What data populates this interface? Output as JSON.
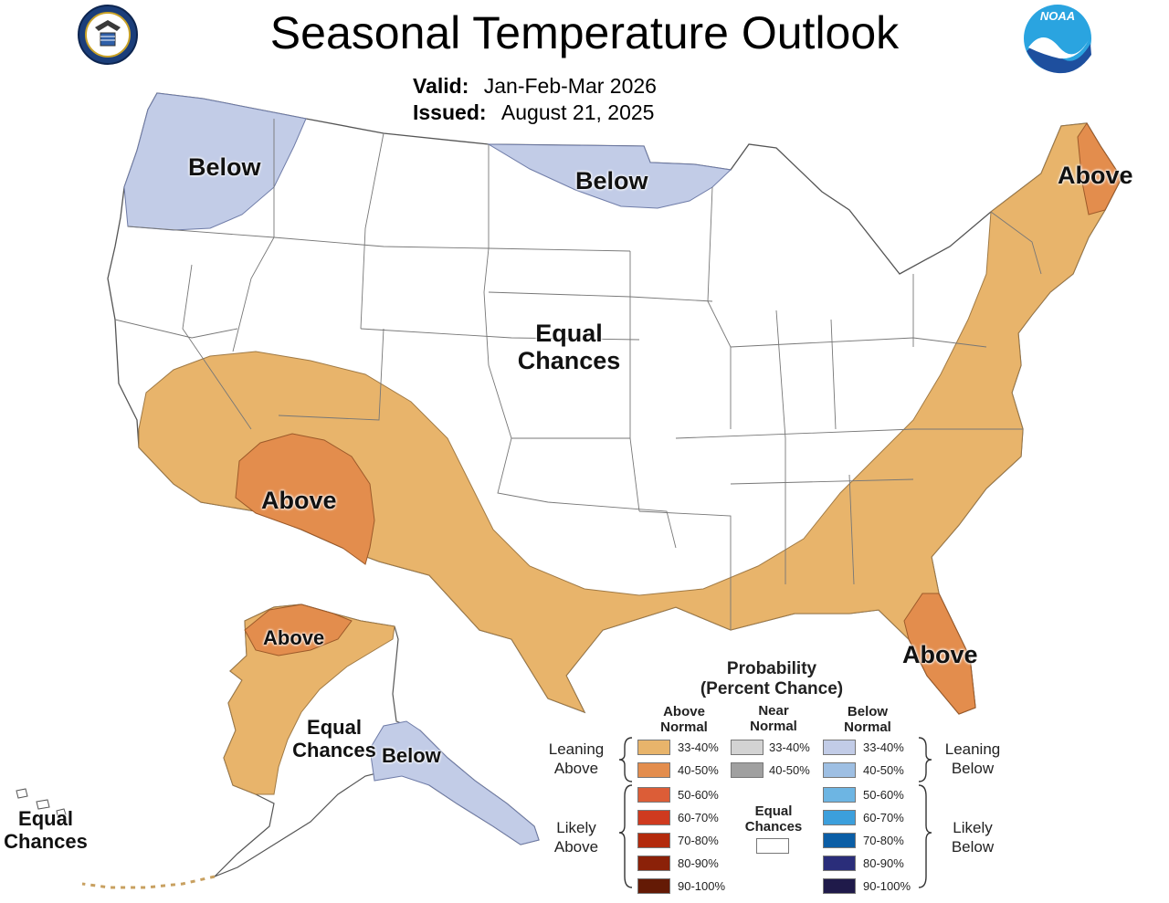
{
  "header": {
    "title": "Seasonal Temperature Outlook",
    "valid_label": "Valid:",
    "valid_value": "Jan-Feb-Mar 2026",
    "issued_label": "Issued:",
    "issued_value": "August 21, 2025"
  },
  "logos": {
    "left": "doc-seal-icon",
    "right": "noaa-logo-icon",
    "noaa_text": "NOAA"
  },
  "colors": {
    "above_33_40": "#e8b46b",
    "above_40_50": "#e38d4d",
    "above_50_60": "#dc5d37",
    "above_60_70": "#cf3a1f",
    "above_70_80": "#b32a0c",
    "above_80_90": "#8b2108",
    "above_90_100": "#641a05",
    "near_33_40": "#d3d3d3",
    "near_40_50": "#a0a0a0",
    "below_33_40": "#c2cce7",
    "below_40_50": "#9ebfe3",
    "below_50_60": "#6db5e3",
    "below_60_70": "#3c9fdc",
    "below_70_80": "#0b5ea6",
    "below_80_90": "#2a2d7a",
    "below_90_100": "#1f1a4a",
    "equal_chances": "#ffffff"
  },
  "map_labels": {
    "pnw": "Below",
    "north_plains": "Below",
    "new_england": "Above",
    "central_line1": "Equal",
    "central_line2": "Chances",
    "southwest": "Above",
    "florida": "Above",
    "alaska_north": "Above",
    "alaska_center_line1": "Equal",
    "alaska_center_line2": "Chances",
    "alaska_se": "Below",
    "hawaii_line1": "Equal",
    "hawaii_line2": "Chances"
  },
  "legend": {
    "title_line1": "Probability",
    "title_line2": "(Percent Chance)",
    "col_above_1": "Above",
    "col_above_2": "Normal",
    "col_near_1": "Near",
    "col_near_2": "Normal",
    "col_below_1": "Below",
    "col_below_2": "Normal",
    "leaning_above_1": "Leaning",
    "leaning_above_2": "Above",
    "likely_above_1": "Likely",
    "likely_above_2": "Above",
    "leaning_below_1": "Leaning",
    "leaning_below_2": "Below",
    "likely_below_1": "Likely",
    "likely_below_2": "Below",
    "equal_1": "Equal",
    "equal_2": "Chances",
    "above_ranges": [
      "33-40%",
      "40-50%",
      "50-60%",
      "60-70%",
      "70-80%",
      "80-90%",
      "90-100%"
    ],
    "near_ranges": [
      "33-40%",
      "40-50%"
    ],
    "below_ranges": [
      "33-40%",
      "40-50%",
      "50-60%",
      "60-70%",
      "70-80%",
      "80-90%",
      "90-100%"
    ]
  }
}
